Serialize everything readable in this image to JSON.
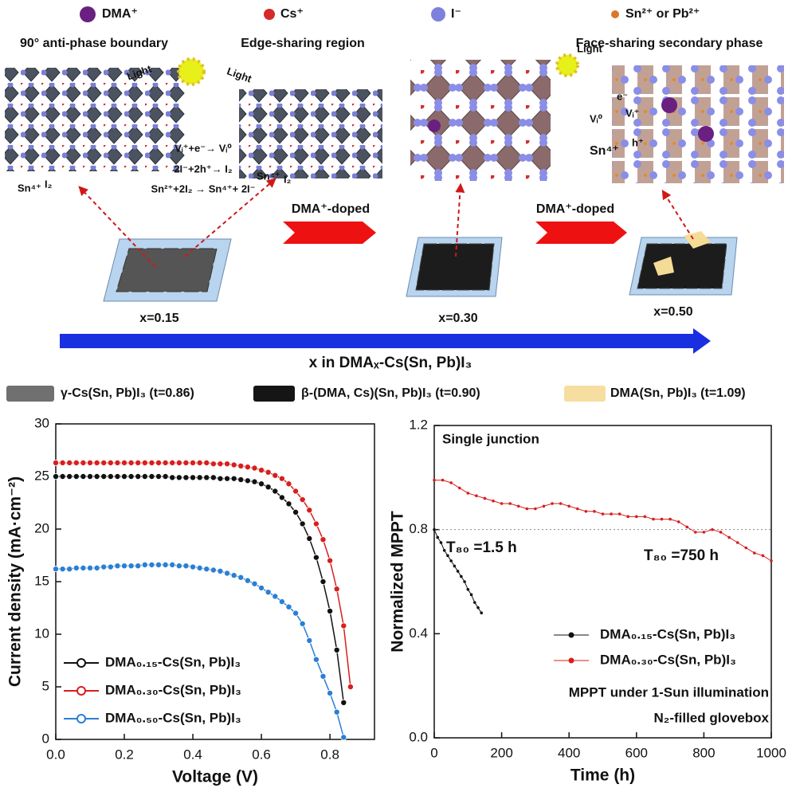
{
  "schematic": {
    "ion_legend": [
      "DMA⁺",
      "Cs⁺",
      "I⁻",
      "Sn²⁺ or Pb²⁺"
    ],
    "region_labels": [
      "90° anti-phase boundary",
      "Edge-sharing region",
      "Face-sharing secondary phase"
    ],
    "light": [
      "Light",
      "Light",
      "Light"
    ],
    "lattice_labels_left": [
      "Sn⁴⁺",
      "I₂"
    ],
    "lattice_labels_mid": [
      "Sn⁴⁺",
      "I₂"
    ],
    "defect_labels": [
      "e⁻",
      "Vᵢ⁰",
      "Vᵢ⁺",
      "h⁺",
      "Sn⁴⁺"
    ],
    "reactions": [
      "Vᵢ⁺+e⁻→ Vᵢ⁰",
      "2I⁻+2h⁺→ I₂",
      "Sn²⁺+2I₂ → Sn⁴⁺+ 2I⁻"
    ],
    "doping": [
      "DMA⁺-doped",
      "DMA⁺-doped"
    ],
    "compositions": [
      "x=0.15",
      "x=0.30",
      "x=0.50"
    ],
    "axis_label": "x in DMAₓ-Cs(Sn, Pb)I₃",
    "phase_legend": [
      "γ-Cs(Sn, Pb)I₃ (t=0.86)",
      "β-(DMA, Cs)(Sn, Pb)I₃ (t=0.90)",
      "DMA(Sn, Pb)I₃ (t=1.09)"
    ]
  },
  "chart_data": [
    {
      "type": "line",
      "xlabel": "Voltage (V)",
      "ylabel": "Current density (mA·cm⁻²)",
      "xlim": [
        0,
        0.93
      ],
      "xticks": [
        {
          "value": 0,
          "label": "0.0"
        },
        0.2,
        0.4,
        0.6,
        0.8
      ],
      "ylim": [
        0,
        30
      ],
      "yticks": [
        0,
        5,
        10,
        15,
        20,
        25,
        30
      ],
      "legend": "lower left",
      "markers": true,
      "x": [
        0,
        0.02,
        0.04,
        0.06,
        0.08,
        0.1,
        0.12,
        0.14,
        0.16,
        0.18,
        0.2,
        0.22,
        0.24,
        0.26,
        0.28,
        0.3,
        0.32,
        0.34,
        0.36,
        0.38,
        0.4,
        0.42,
        0.44,
        0.46,
        0.48,
        0.5,
        0.52,
        0.54,
        0.56,
        0.58,
        0.6,
        0.62,
        0.64,
        0.66,
        0.68,
        0.7,
        0.72,
        0.74,
        0.76,
        0.78,
        0.8,
        0.82,
        0.84,
        0.86,
        0.88
      ],
      "series": [
        {
          "name": "DMA₀.₁₅-Cs(Sn, Pb)I₃",
          "color": "#111111",
          "values": [
            25.0,
            25.0,
            25.0,
            25.0,
            25.0,
            25.0,
            25.0,
            25.0,
            25.0,
            25.0,
            25.0,
            25.0,
            25.0,
            25.0,
            25.0,
            25.0,
            25.0,
            24.9,
            24.9,
            24.9,
            24.9,
            24.9,
            24.9,
            24.9,
            24.8,
            24.8,
            24.8,
            24.7,
            24.6,
            24.5,
            24.3,
            24.0,
            23.6,
            23.0,
            22.4,
            21.6,
            20.5,
            19.1,
            17.3,
            15.0,
            12.2,
            8.5,
            3.5,
            null,
            null
          ]
        },
        {
          "name": "DMA₀.₃₀-Cs(Sn, Pb)I₃",
          "color": "#d81e1e",
          "values": [
            26.3,
            26.3,
            26.3,
            26.3,
            26.3,
            26.3,
            26.3,
            26.3,
            26.3,
            26.3,
            26.3,
            26.3,
            26.3,
            26.3,
            26.3,
            26.3,
            26.3,
            26.3,
            26.3,
            26.3,
            26.3,
            26.3,
            26.3,
            26.2,
            26.2,
            26.2,
            26.1,
            26.0,
            25.9,
            25.8,
            25.6,
            25.4,
            25.1,
            24.8,
            24.3,
            23.6,
            22.8,
            21.8,
            20.5,
            19.0,
            17.0,
            14.3,
            10.8,
            5.0,
            null
          ]
        },
        {
          "name": "DMA₀.₅₀-Cs(Sn, Pb)I₃",
          "color": "#2a7fd4",
          "values": [
            16.2,
            16.2,
            16.2,
            16.3,
            16.3,
            16.3,
            16.3,
            16.4,
            16.4,
            16.5,
            16.5,
            16.5,
            16.5,
            16.6,
            16.6,
            16.6,
            16.6,
            16.6,
            16.5,
            16.5,
            16.4,
            16.3,
            16.2,
            16.1,
            16.0,
            15.8,
            15.6,
            15.4,
            15.1,
            14.8,
            14.4,
            14.0,
            13.6,
            13.1,
            12.6,
            12.0,
            11.0,
            9.4,
            7.6,
            6.0,
            4.4,
            2.6,
            0.2,
            null,
            null
          ]
        }
      ]
    },
    {
      "type": "line",
      "xlabel": "Time (h)",
      "ylabel": "Normalized MPPT",
      "xlim": [
        0,
        1000
      ],
      "xticks": [
        0,
        200,
        400,
        600,
        800,
        1000
      ],
      "ylim": [
        0,
        1.2
      ],
      "yticks": [
        {
          "value": 0,
          "label": "0.0"
        },
        0.4,
        0.8,
        1.2
      ],
      "legend": "center right",
      "markers": true,
      "hline": 0.8,
      "annotations": [
        "Single junction",
        "T₈₀ =1.5 h",
        "T₈₀ =750 h",
        "MPPT under 1-Sun illumination",
        "N₂-filled glovebox"
      ],
      "series": [
        {
          "name": "DMA₀.₁₅-Cs(Sn, Pb)I₃",
          "color": "#111111",
          "x": [
            0,
            10,
            20,
            30,
            40,
            50,
            60,
            70,
            80,
            90,
            100,
            110,
            120,
            130,
            140
          ],
          "values": [
            0.8,
            0.77,
            0.75,
            0.72,
            0.7,
            0.68,
            0.66,
            0.64,
            0.62,
            0.6,
            0.57,
            0.55,
            0.52,
            0.5,
            0.48
          ]
        },
        {
          "name": "DMA₀.₃₀-Cs(Sn, Pb)I₃",
          "color": "#d81e1e",
          "x": [
            0,
            25,
            50,
            75,
            100,
            125,
            150,
            175,
            200,
            225,
            250,
            275,
            300,
            325,
            350,
            375,
            400,
            425,
            450,
            475,
            500,
            525,
            550,
            575,
            600,
            625,
            650,
            675,
            700,
            725,
            750,
            775,
            800,
            825,
            850,
            875,
            900,
            925,
            950,
            975,
            1000
          ],
          "values": [
            0.99,
            0.99,
            0.98,
            0.96,
            0.94,
            0.93,
            0.92,
            0.91,
            0.9,
            0.9,
            0.89,
            0.88,
            0.88,
            0.89,
            0.9,
            0.9,
            0.89,
            0.88,
            0.87,
            0.87,
            0.86,
            0.86,
            0.86,
            0.85,
            0.85,
            0.85,
            0.84,
            0.84,
            0.84,
            0.83,
            0.81,
            0.79,
            0.79,
            0.8,
            0.79,
            0.77,
            0.75,
            0.73,
            0.71,
            0.7,
            0.68
          ]
        }
      ]
    }
  ]
}
